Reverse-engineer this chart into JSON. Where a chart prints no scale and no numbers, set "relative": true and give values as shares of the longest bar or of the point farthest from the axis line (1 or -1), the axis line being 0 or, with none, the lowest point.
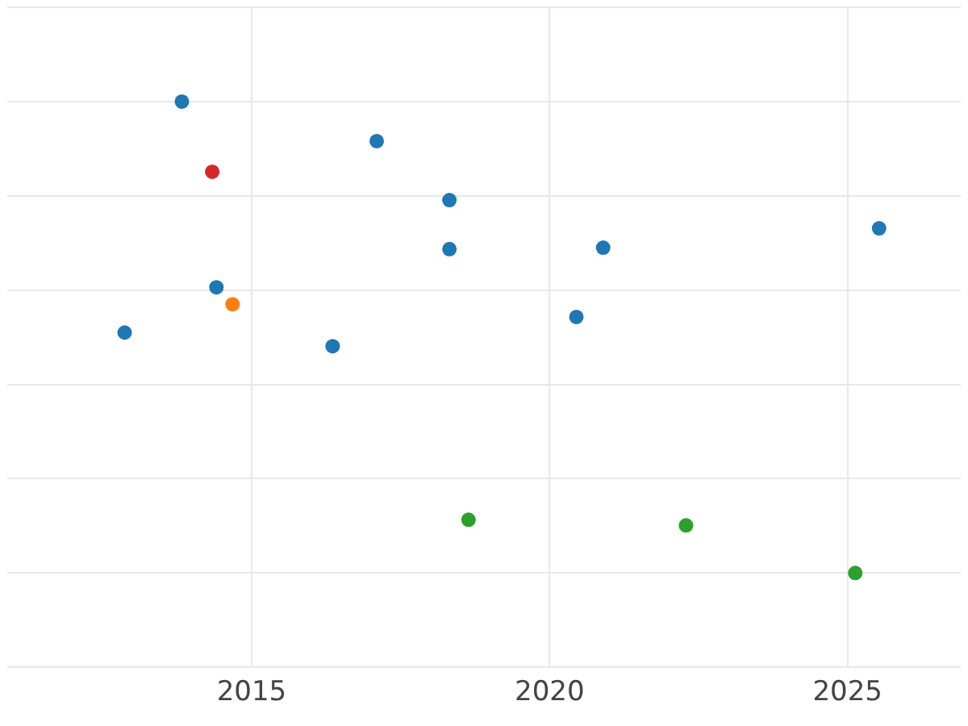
{
  "chart_data": {
    "type": "scatter",
    "relative": true,
    "grid": true,
    "legend": false,
    "marker": "circle",
    "xlim": [
      2010.9,
      2026.9
    ],
    "xticks": [
      2015,
      2020,
      2025
    ],
    "series": [
      {
        "color": "#1f77b4",
        "x": [
          2013.83,
          2017.1,
          2018.32,
          2018.32,
          2020.9,
          2025.53,
          2014.41,
          2012.87,
          2016.36,
          2020.45
        ],
        "values": [
          1,
          0.916,
          0.791,
          0.687,
          0.69,
          0.731,
          0.606,
          0.51,
          0.481,
          0.543
        ]
      },
      {
        "color": "#d62728",
        "x": [
          2014.34
        ],
        "values": [
          0.851
        ]
      },
      {
        "color": "#ff7f0e",
        "x": [
          2014.68
        ],
        "values": [
          0.57
        ]
      },
      {
        "color": "#2ca02c",
        "x": [
          2018.64,
          2022.29,
          2025.13
        ],
        "values": [
          0.113,
          0.101,
          0
        ]
      }
    ]
  }
}
